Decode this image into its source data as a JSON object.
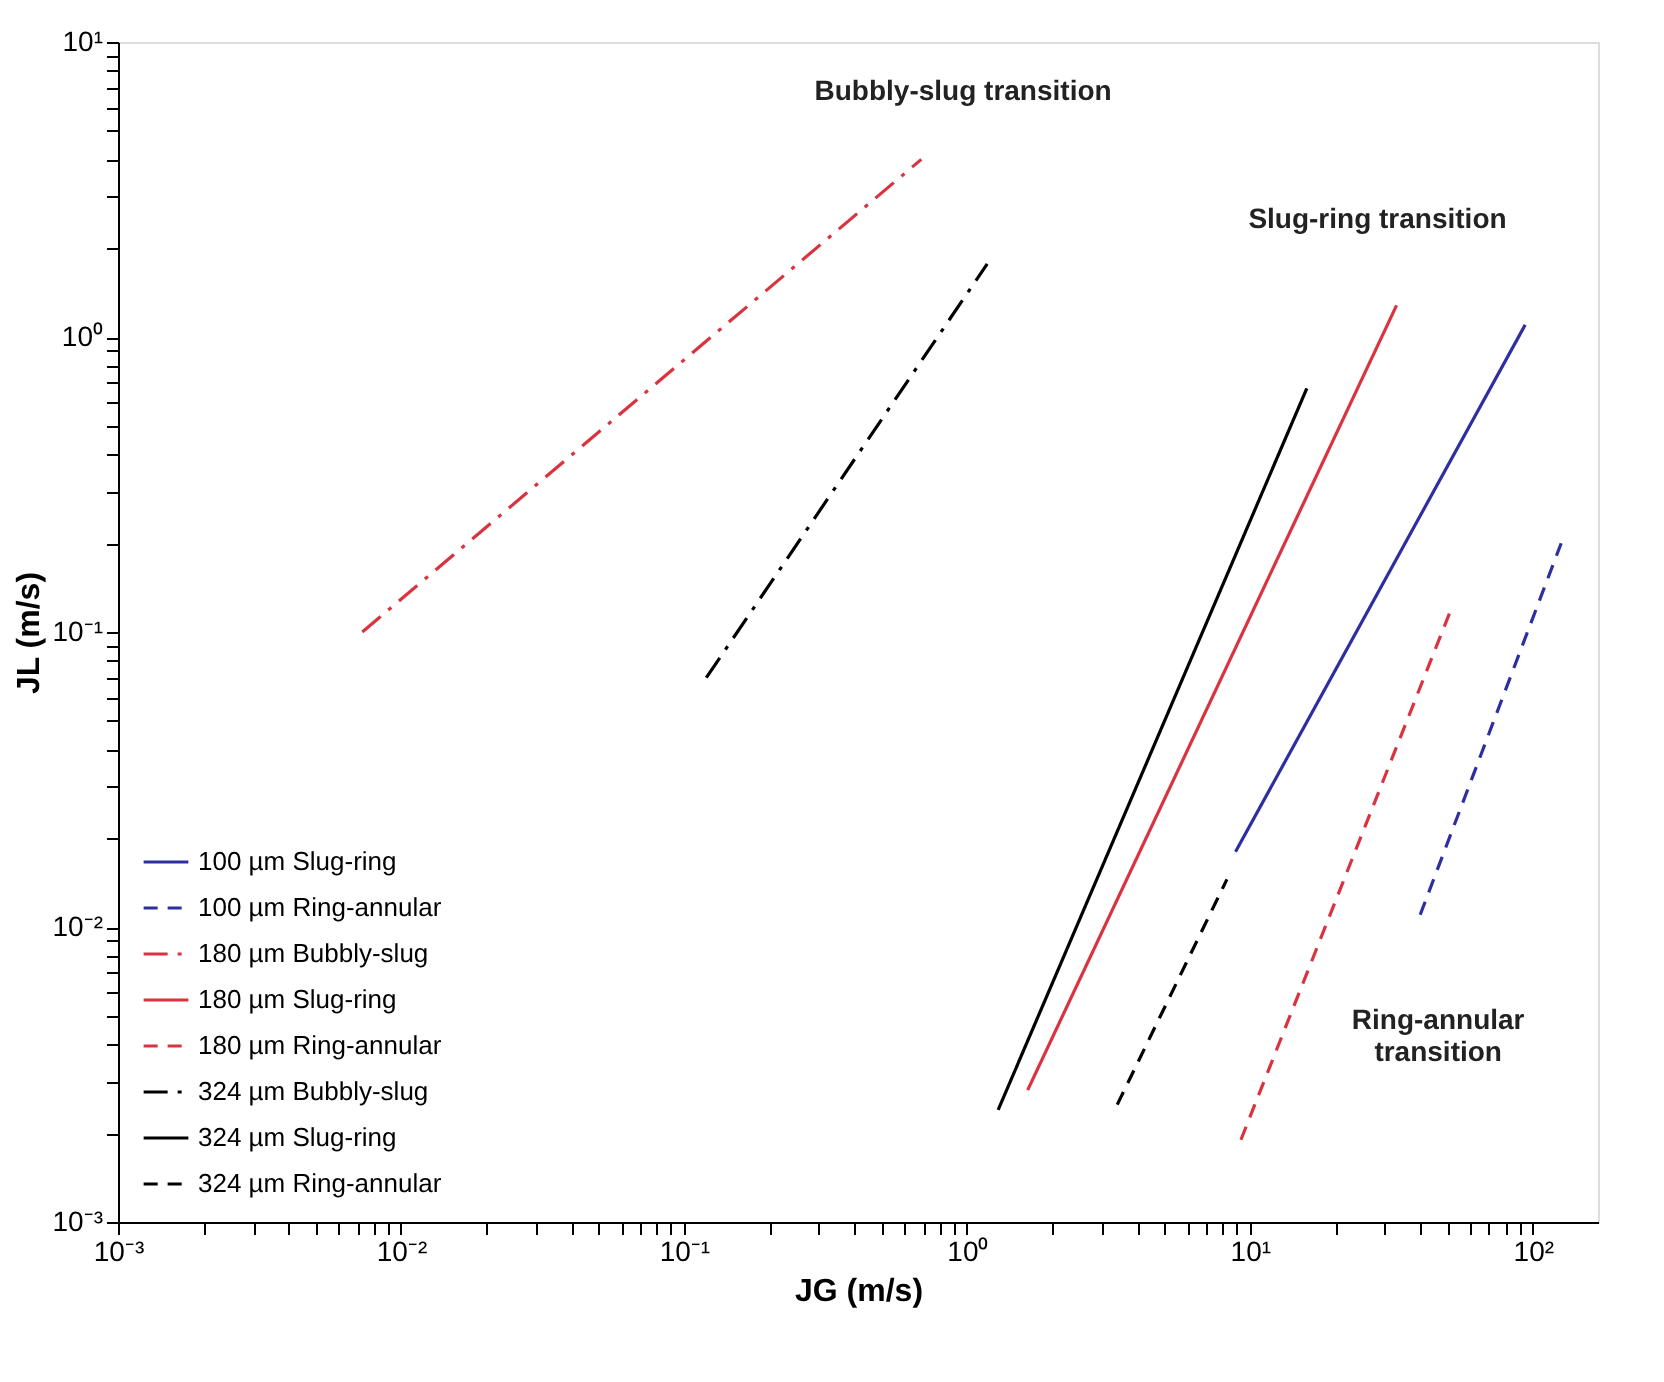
{
  "chart_data": {
    "type": "line",
    "xlabel": "JG (m/s)",
    "ylabel": "JL (m/s)",
    "log": "xy",
    "grid": false,
    "legend": "bottom left",
    "xlim": [
      0.001,
      170
    ],
    "ylim": [
      0.001,
      10
    ],
    "xticks": [
      {
        "value": 0.001,
        "label": "10⁻³"
      },
      {
        "value": 0.002,
        "label": null
      },
      {
        "value": 0.003,
        "label": null
      },
      {
        "value": 0.004,
        "label": null
      },
      {
        "value": 0.005,
        "label": null
      },
      {
        "value": 0.006,
        "label": null
      },
      {
        "value": 0.007,
        "label": null
      },
      {
        "value": 0.008,
        "label": null
      },
      {
        "value": 0.009,
        "label": null
      },
      {
        "value": 0.01,
        "label": "10⁻²"
      },
      {
        "value": 0.02,
        "label": null
      },
      {
        "value": 0.03,
        "label": null
      },
      {
        "value": 0.04,
        "label": null
      },
      {
        "value": 0.05,
        "label": null
      },
      {
        "value": 0.06,
        "label": null
      },
      {
        "value": 0.07,
        "label": null
      },
      {
        "value": 0.08,
        "label": null
      },
      {
        "value": 0.09,
        "label": null
      },
      {
        "value": 0.1,
        "label": "10⁻¹"
      },
      {
        "value": 0.2,
        "label": null
      },
      {
        "value": 0.3,
        "label": null
      },
      {
        "value": 0.4,
        "label": null
      },
      {
        "value": 0.5,
        "label": null
      },
      {
        "value": 0.6,
        "label": null
      },
      {
        "value": 0.7,
        "label": null
      },
      {
        "value": 0.8,
        "label": null
      },
      {
        "value": 0.9,
        "label": null
      },
      {
        "value": 1,
        "label": "10⁰"
      },
      {
        "value": 2,
        "label": null
      },
      {
        "value": 3,
        "label": null
      },
      {
        "value": 4,
        "label": null
      },
      {
        "value": 5,
        "label": null
      },
      {
        "value": 6,
        "label": null
      },
      {
        "value": 7,
        "label": null
      },
      {
        "value": 8,
        "label": null
      },
      {
        "value": 9,
        "label": null
      },
      {
        "value": 10,
        "label": "10¹"
      },
      {
        "value": 20,
        "label": null
      },
      {
        "value": 30,
        "label": null
      },
      {
        "value": 40,
        "label": null
      },
      {
        "value": 50,
        "label": null
      },
      {
        "value": 60,
        "label": null
      },
      {
        "value": 70,
        "label": null
      },
      {
        "value": 80,
        "label": null
      },
      {
        "value": 90,
        "label": null
      },
      {
        "value": 100,
        "label": "10²"
      }
    ],
    "yticks": [
      {
        "value": 0.001,
        "label": "10⁻³"
      },
      {
        "value": 0.002,
        "label": null
      },
      {
        "value": 0.003,
        "label": null
      },
      {
        "value": 0.004,
        "label": null
      },
      {
        "value": 0.005,
        "label": null
      },
      {
        "value": 0.006,
        "label": null
      },
      {
        "value": 0.007,
        "label": null
      },
      {
        "value": 0.008,
        "label": null
      },
      {
        "value": 0.009,
        "label": null
      },
      {
        "value": 0.01,
        "label": "10⁻²"
      },
      {
        "value": 0.02,
        "label": null
      },
      {
        "value": 0.03,
        "label": null
      },
      {
        "value": 0.04,
        "label": null
      },
      {
        "value": 0.05,
        "label": null
      },
      {
        "value": 0.06,
        "label": null
      },
      {
        "value": 0.07,
        "label": null
      },
      {
        "value": 0.08,
        "label": null
      },
      {
        "value": 0.09,
        "label": null
      },
      {
        "value": 0.1,
        "label": "10⁻¹"
      },
      {
        "value": 0.2,
        "label": null
      },
      {
        "value": 0.3,
        "label": null
      },
      {
        "value": 0.4,
        "label": null
      },
      {
        "value": 0.5,
        "label": null
      },
      {
        "value": 0.6,
        "label": null
      },
      {
        "value": 0.7,
        "label": null
      },
      {
        "value": 0.8,
        "label": null
      },
      {
        "value": 0.9,
        "label": null
      },
      {
        "value": 1,
        "label": "10⁰"
      },
      {
        "value": 2,
        "label": null
      },
      {
        "value": 3,
        "label": null
      },
      {
        "value": 4,
        "label": null
      },
      {
        "value": 5,
        "label": null
      },
      {
        "value": 6,
        "label": null
      },
      {
        "value": 7,
        "label": null
      },
      {
        "value": 8,
        "label": null
      },
      {
        "value": 9,
        "label": null
      },
      {
        "value": 10,
        "label": "10¹"
      }
    ],
    "series": [
      {
        "name": "100 µm Slug-ring",
        "color": "#2e2ea0",
        "line_style": "solid",
        "x": [
          8.9,
          94
        ],
        "values": [
          0.018,
          1.1
        ]
      },
      {
        "name": "100 µm Ring-annular",
        "color": "#2e2ea0",
        "line_style": "dashed",
        "x": [
          40,
          126
        ],
        "values": [
          0.011,
          0.2
        ]
      },
      {
        "name": "180 µm Bubbly-slug",
        "color": "#d9333f",
        "line_style": "dashdot",
        "x": [
          0.0073,
          0.69
        ],
        "values": [
          0.1,
          4.0
        ]
      },
      {
        "name": "180 µm Slug-ring",
        "color": "#d9333f",
        "line_style": "solid",
        "x": [
          1.64,
          33
        ],
        "values": [
          0.0028,
          1.28
        ]
      },
      {
        "name": "180 µm Ring-annular",
        "color": "#d9333f",
        "line_style": "dashed",
        "x": [
          9.3,
          51
        ],
        "values": [
          0.0019,
          0.117
        ]
      },
      {
        "name": "324 µm Bubbly-slug",
        "color": "#000000",
        "line_style": "dashdot",
        "x": [
          0.12,
          1.18
        ],
        "values": [
          0.07,
          1.77
        ]
      },
      {
        "name": "324 µm Slug-ring",
        "color": "#000000",
        "line_style": "solid",
        "x": [
          1.29,
          15.9
        ],
        "values": [
          0.0024,
          0.67
        ]
      },
      {
        "name": "324 µm Ring-annular",
        "color": "#000000",
        "line_style": "dashed",
        "x": [
          3.4,
          8.3
        ],
        "values": [
          0.0025,
          0.0145
        ]
      }
    ],
    "annotations": [
      "Bubbly-slug transition",
      "Slug-ring transition",
      "Ring-annular\ntransition"
    ]
  }
}
